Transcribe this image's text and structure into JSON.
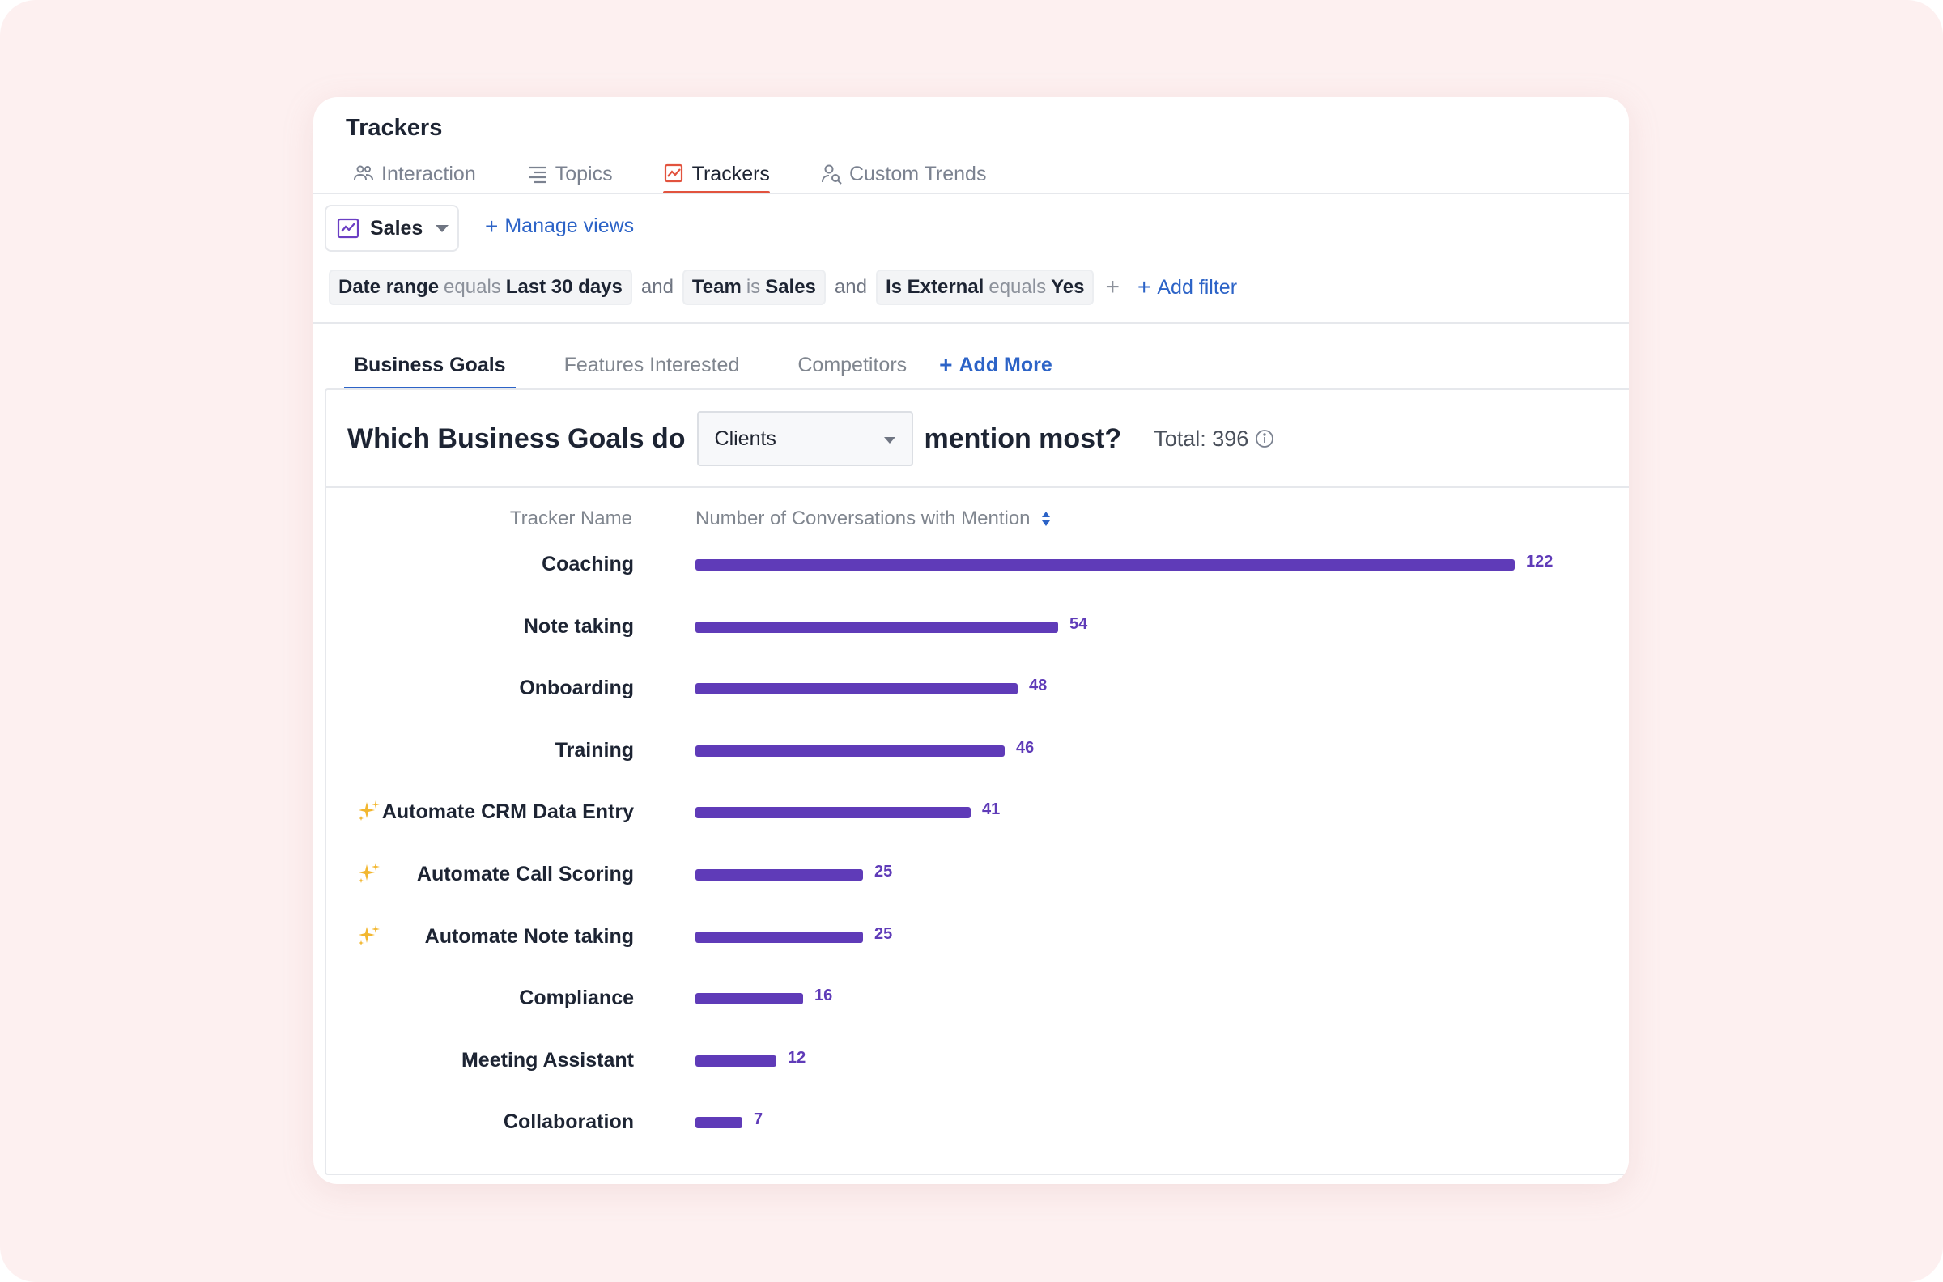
{
  "card": {
    "title": "Trackers"
  },
  "nav_tabs": [
    {
      "label": "Interaction",
      "icon": "people-icon"
    },
    {
      "label": "Topics",
      "icon": "list-icon"
    },
    {
      "label": "Trackers",
      "icon": "trend-icon",
      "active": true
    },
    {
      "label": "Custom Trends",
      "icon": "person-search-icon"
    }
  ],
  "view": {
    "label": "Sales",
    "manage_label": "Manage views"
  },
  "filters": [
    {
      "field": "Date range",
      "op": "equals",
      "value": "Last 30 days"
    },
    {
      "field": "Team",
      "op": "is",
      "value": "Sales"
    },
    {
      "field": "Is External",
      "op": "equals",
      "value": "Yes"
    }
  ],
  "filter_conj": "and",
  "filter_plus": "+",
  "add_filter_label": "Add filter",
  "sub_tabs": [
    "Business Goals",
    "Features Interested",
    "Competitors"
  ],
  "add_more_label": "Add More",
  "question": {
    "prefix": "Which Business Goals do",
    "select_value": "Clients",
    "suffix": "mention most?",
    "total": "Total: 396"
  },
  "columns": {
    "name": "Tracker Name",
    "value": "Number of Conversations with Mention"
  },
  "colors": {
    "bar": "#5f3bb8",
    "accent": "#2c63c7",
    "active_nav": "#e2533e"
  },
  "chart_data": {
    "type": "bar",
    "orientation": "horizontal",
    "categories": [
      "Coaching",
      "Note taking",
      "Onboarding",
      "Training",
      "Automate CRM Data Entry",
      "Automate Call Scoring",
      "Automate Note taking",
      "Compliance",
      "Meeting Assistant",
      "Collaboration"
    ],
    "values": [
      122,
      54,
      48,
      46,
      41,
      25,
      25,
      16,
      12,
      7
    ],
    "ai_generated": [
      false,
      false,
      false,
      false,
      true,
      true,
      true,
      false,
      false,
      false
    ],
    "xlabel": "Number of Conversations with Mention",
    "ylabel": "Tracker Name",
    "xlim": [
      0,
      122
    ]
  }
}
